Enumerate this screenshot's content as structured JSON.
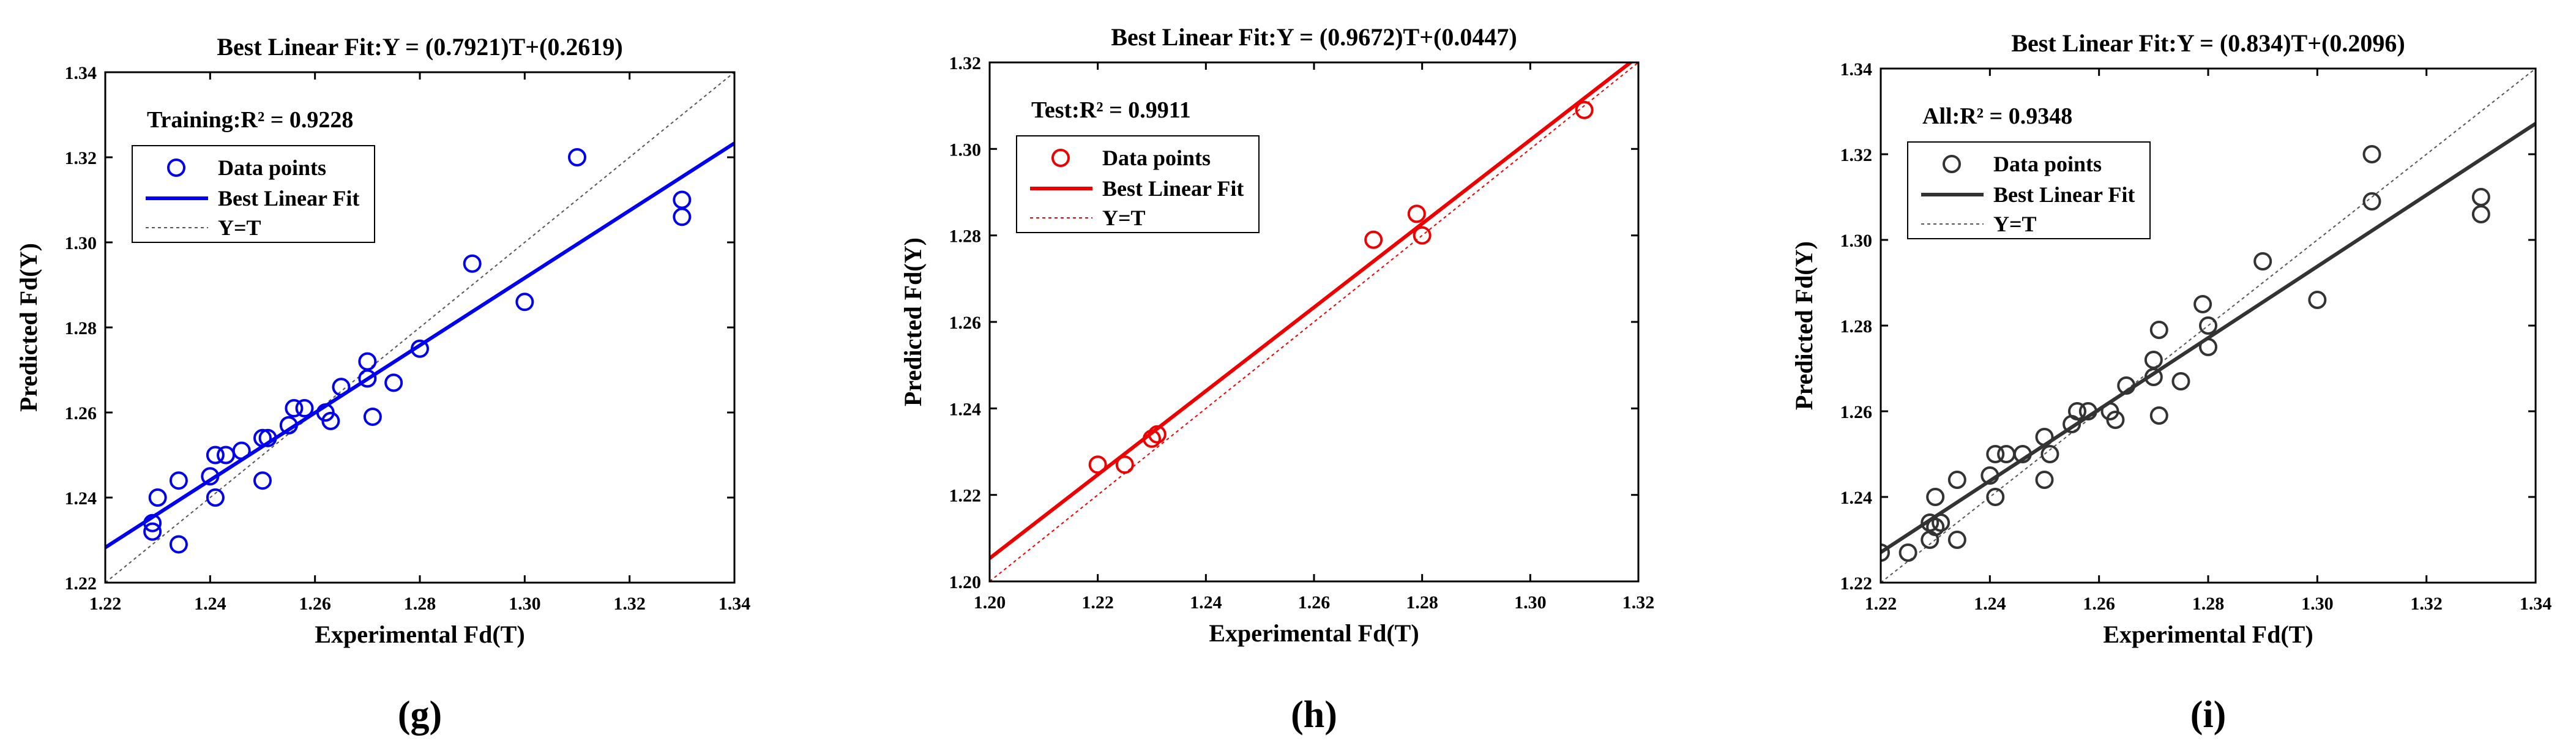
{
  "chart_data": [
    {
      "type": "scatter",
      "panel_label": "(g)",
      "title": "Best Linear Fit:Y = (0.7921)T+(0.2619)",
      "r2_label": "Training:R² = 0.9228",
      "xlabel": "Experimental Fd(T)",
      "ylabel": "Predicted Fd(Y)",
      "xlim": [
        1.22,
        1.34
      ],
      "ylim": [
        1.22,
        1.34
      ],
      "xticks": [
        "1.22",
        "1.24",
        "1.26",
        "1.28",
        "1.30",
        "1.32",
        "1.34"
      ],
      "yticks": [
        "1.22",
        "1.24",
        "1.26",
        "1.28",
        "1.30",
        "1.32",
        "1.34"
      ],
      "color": "#0000ee",
      "fit": {
        "slope": 0.7921,
        "intercept": 0.2619
      },
      "legend": [
        "Data points",
        "Best Linear Fit",
        "Y=T"
      ],
      "points": [
        [
          1.229,
          1.234
        ],
        [
          1.229,
          1.232
        ],
        [
          1.23,
          1.24
        ],
        [
          1.234,
          1.244
        ],
        [
          1.234,
          1.229
        ],
        [
          1.24,
          1.245
        ],
        [
          1.241,
          1.25
        ],
        [
          1.241,
          1.24
        ],
        [
          1.243,
          1.25
        ],
        [
          1.246,
          1.251
        ],
        [
          1.25,
          1.254
        ],
        [
          1.25,
          1.244
        ],
        [
          1.251,
          1.254
        ],
        [
          1.255,
          1.257
        ],
        [
          1.256,
          1.261
        ],
        [
          1.258,
          1.261
        ],
        [
          1.262,
          1.26
        ],
        [
          1.263,
          1.258
        ],
        [
          1.265,
          1.266
        ],
        [
          1.27,
          1.272
        ],
        [
          1.27,
          1.268
        ],
        [
          1.271,
          1.259
        ],
        [
          1.275,
          1.267
        ],
        [
          1.28,
          1.275
        ],
        [
          1.29,
          1.295
        ],
        [
          1.3,
          1.286
        ],
        [
          1.31,
          1.32
        ],
        [
          1.33,
          1.31
        ],
        [
          1.33,
          1.306
        ]
      ]
    },
    {
      "type": "scatter",
      "panel_label": "(h)",
      "title": "Best Linear Fit:Y = (0.9672)T+(0.0447)",
      "r2_label": "Test:R² = 0.9911",
      "xlabel": "Experimental Fd(T)",
      "ylabel": "Predicted Fd(Y)",
      "xlim": [
        1.2,
        1.32
      ],
      "ylim": [
        1.2,
        1.32
      ],
      "xticks": [
        "1.20",
        "1.22",
        "1.24",
        "1.26",
        "1.28",
        "1.30",
        "1.32"
      ],
      "yticks": [
        "1.20",
        "1.22",
        "1.24",
        "1.26",
        "1.28",
        "1.30",
        "1.32"
      ],
      "color": "#ee0000",
      "fit": {
        "slope": 0.9672,
        "intercept": 0.0447
      },
      "legend": [
        "Data points",
        "Best Linear Fit",
        "Y=T"
      ],
      "points": [
        [
          1.22,
          1.227
        ],
        [
          1.225,
          1.227
        ],
        [
          1.23,
          1.233
        ],
        [
          1.231,
          1.234
        ],
        [
          1.271,
          1.279
        ],
        [
          1.279,
          1.285
        ],
        [
          1.28,
          1.28
        ],
        [
          1.31,
          1.309
        ]
      ]
    },
    {
      "type": "scatter",
      "panel_label": "(i)",
      "title": "Best Linear Fit:Y = (0.834)T+(0.2096)",
      "r2_label": "All:R² = 0.9348",
      "xlabel": "Experimental Fd(T)",
      "ylabel": "Predicted Fd(Y)",
      "xlim": [
        1.22,
        1.34
      ],
      "ylim": [
        1.22,
        1.34
      ],
      "xticks": [
        "1.22",
        "1.24",
        "1.26",
        "1.28",
        "1.30",
        "1.32",
        "1.34"
      ],
      "yticks": [
        "1.22",
        "1.24",
        "1.26",
        "1.28",
        "1.30",
        "1.32",
        "1.34"
      ],
      "color": "#333333",
      "fit": {
        "slope": 0.834,
        "intercept": 0.2096
      },
      "legend": [
        "Data points",
        "Best Linear Fit",
        "Y=T"
      ],
      "points": [
        [
          1.22,
          1.227
        ],
        [
          1.225,
          1.227
        ],
        [
          1.229,
          1.234
        ],
        [
          1.229,
          1.23
        ],
        [
          1.23,
          1.24
        ],
        [
          1.23,
          1.233
        ],
        [
          1.231,
          1.234
        ],
        [
          1.234,
          1.244
        ],
        [
          1.234,
          1.23
        ],
        [
          1.24,
          1.245
        ],
        [
          1.241,
          1.25
        ],
        [
          1.241,
          1.24
        ],
        [
          1.243,
          1.25
        ],
        [
          1.246,
          1.25
        ],
        [
          1.25,
          1.254
        ],
        [
          1.25,
          1.244
        ],
        [
          1.251,
          1.25
        ],
        [
          1.255,
          1.257
        ],
        [
          1.256,
          1.26
        ],
        [
          1.258,
          1.26
        ],
        [
          1.262,
          1.26
        ],
        [
          1.263,
          1.258
        ],
        [
          1.265,
          1.266
        ],
        [
          1.27,
          1.272
        ],
        [
          1.27,
          1.268
        ],
        [
          1.271,
          1.279
        ],
        [
          1.271,
          1.259
        ],
        [
          1.275,
          1.267
        ],
        [
          1.279,
          1.285
        ],
        [
          1.28,
          1.28
        ],
        [
          1.28,
          1.275
        ],
        [
          1.29,
          1.295
        ],
        [
          1.3,
          1.286
        ],
        [
          1.31,
          1.32
        ],
        [
          1.31,
          1.309
        ],
        [
          1.33,
          1.31
        ],
        [
          1.33,
          1.306
        ]
      ]
    }
  ]
}
